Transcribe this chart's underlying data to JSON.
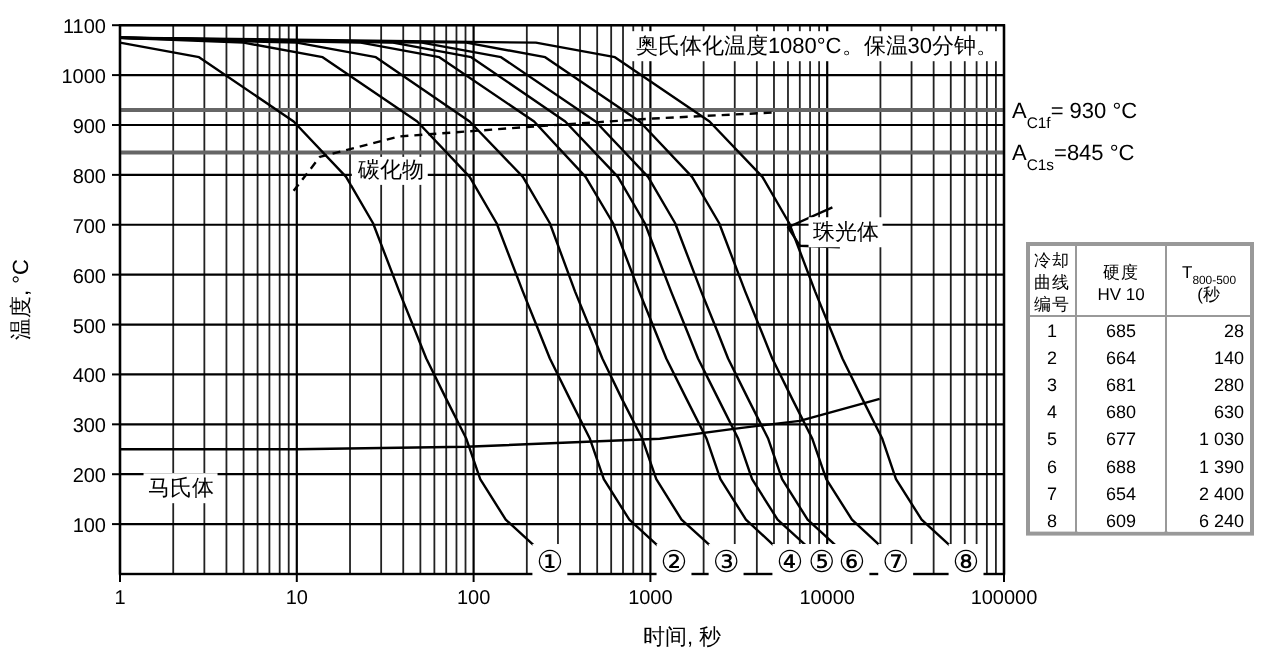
{
  "chart_data": [
    {
      "type": "line",
      "xlabel": "时间, 秒",
      "ylabel": "温度, °C",
      "log": "x",
      "grid": true,
      "xlim": [
        1,
        100000
      ],
      "xticks": [
        1,
        10,
        100,
        1000,
        10000,
        100000
      ],
      "ylim": [
        0,
        1100
      ],
      "yticks": [
        100,
        200,
        300,
        400,
        500,
        600,
        700,
        800,
        900,
        1000,
        1100
      ],
      "ref_lines": [
        {
          "axis": "y",
          "value": 930,
          "label": "A$_{C1f}$= 930 °C",
          "color": "#666666"
        },
        {
          "axis": "y",
          "value": 845,
          "label": "A$_{C1s}$=845 °C",
          "color": "#666666"
        }
      ],
      "annotations": [
        "奥氏体化温度1080°C。保温30分钟。",
        {
          "text": "碳化物",
          "x": 34,
          "y": 812
        },
        {
          "text": "珠光体",
          "x": 12700,
          "y": 687
        },
        {
          "text": "马氏体",
          "x": 2.2,
          "y": 174
        },
        {
          "text": "①",
          "x": 270,
          "y": 20
        },
        {
          "text": "②",
          "x": 1360,
          "y": 20
        },
        {
          "text": "③",
          "x": 2680,
          "y": 20
        },
        {
          "text": "④",
          "x": 6150,
          "y": 20
        },
        {
          "text": "⑤",
          "x": 9300,
          "y": 20
        },
        {
          "text": "⑥",
          "x": 13800,
          "y": 20
        },
        {
          "text": "⑦",
          "x": 24400,
          "y": 20
        },
        {
          "text": "⑧",
          "x": 61000,
          "y": 20
        }
      ],
      "series": [
        {
          "color": "#000000",
          "x": [
            1,
            2.8,
            9.6,
            19,
            27,
            38,
            47,
            54,
            70,
            91,
            109,
            152,
            220
          ],
          "values": [
            1065,
            1036,
            907,
            796,
            703,
            566,
            485,
            432,
            351,
            271,
            190,
            109,
            57
          ]
        },
        {
          "color": "#000000",
          "x": [
            1,
            5,
            14,
            48,
            95,
            135,
            190,
            235,
            270,
            350,
            455,
            545,
            760,
            1100
          ],
          "values": [
            1075,
            1065,
            1036,
            907,
            796,
            703,
            566,
            485,
            432,
            351,
            271,
            190,
            109,
            57
          ]
        },
        {
          "color": "#000000",
          "x": [
            1,
            10,
            28,
            95,
            190,
            270,
            375,
            465,
            535,
            690,
            900,
            1080,
            1500,
            2180
          ],
          "values": [
            1075,
            1065,
            1036,
            907,
            796,
            703,
            566,
            485,
            432,
            351,
            271,
            190,
            109,
            57
          ]
        },
        {
          "color": "#000000",
          "x": [
            1,
            23,
            64,
            220,
            430,
            615,
            865,
            1070,
            1230,
            1600,
            2080,
            2490,
            3470,
            5000
          ],
          "values": [
            1075,
            1065,
            1036,
            907,
            796,
            703,
            566,
            485,
            432,
            351,
            271,
            190,
            109,
            57
          ]
        },
        {
          "color": "#000000",
          "x": [
            1,
            35,
            97,
            330,
            655,
            930,
            1310,
            1620,
            1860,
            2420,
            3140,
            3760,
            5240,
            7600
          ],
          "values": [
            1075,
            1065,
            1036,
            907,
            796,
            703,
            566,
            485,
            432,
            351,
            271,
            190,
            109,
            57
          ]
        },
        {
          "color": "#000000",
          "x": [
            1,
            51,
            143,
            490,
            970,
            1380,
            1940,
            2400,
            2750,
            3570,
            4640,
            5560,
            7750,
            11200
          ],
          "values": [
            1075,
            1065,
            1036,
            907,
            796,
            703,
            566,
            485,
            432,
            351,
            271,
            190,
            109,
            57
          ]
        },
        {
          "color": "#000000",
          "x": [
            1,
            91,
            254,
            870,
            1720,
            2450,
            3440,
            4260,
            4890,
            6340,
            8240,
            9880,
            13800,
            19900
          ],
          "values": [
            1075,
            1065,
            1036,
            907,
            796,
            703,
            566,
            485,
            432,
            351,
            271,
            190,
            109,
            57
          ]
        },
        {
          "color": "#000000",
          "x": [
            1,
            225,
            630,
            2160,
            4300,
            6100,
            8550,
            10600,
            12200,
            15800,
            20500,
            24500,
            34200,
            49500
          ],
          "values": [
            1075,
            1065,
            1036,
            907,
            796,
            703,
            566,
            485,
            432,
            351,
            271,
            190,
            109,
            57
          ]
        },
        {
          "color": "#000000",
          "line_style": "dashed",
          "x": [
            9.6,
            13.5,
            38,
            220,
            1040,
            5000
          ],
          "values": [
            768,
            836,
            877,
            897,
            913,
            925
          ]
        },
        {
          "color": "#000000",
          "x": [
            1,
            10,
            91,
            1130,
            2960,
            7000,
            19800
          ],
          "values": [
            250,
            250,
            255,
            271,
            291,
            307,
            351
          ]
        },
        {
          "color": "#000000",
          "x": [
            10700,
            6000,
            7000,
            11800
          ],
          "values": [
            735,
            695,
            658,
            655
          ]
        }
      ]
    },
    {
      "type": "heatmap",
      "legend_title": "冷却曲线编号",
      "categories": [
        "硬度 HV 10",
        "T$_{800-500}$ (秒"
      ],
      "y_categories": [
        "1",
        "2",
        "3",
        "4",
        "5",
        "6",
        "7",
        "8"
      ],
      "cells": [
        [
          685,
          28
        ],
        [
          664,
          140
        ],
        [
          681,
          280
        ],
        [
          680,
          630
        ],
        [
          677,
          1030
        ],
        [
          688,
          1390
        ],
        [
          654,
          2400
        ],
        [
          609,
          6240
        ]
      ],
      "cell_labels": [
        [
          "685",
          "28"
        ],
        [
          "664",
          "140"
        ],
        [
          "681",
          "280"
        ],
        [
          "680",
          "630"
        ],
        [
          "677",
          "1 030"
        ],
        [
          "688",
          "1 390"
        ],
        [
          "654",
          "2 400"
        ],
        [
          "609",
          "6 240"
        ]
      ]
    }
  ]
}
